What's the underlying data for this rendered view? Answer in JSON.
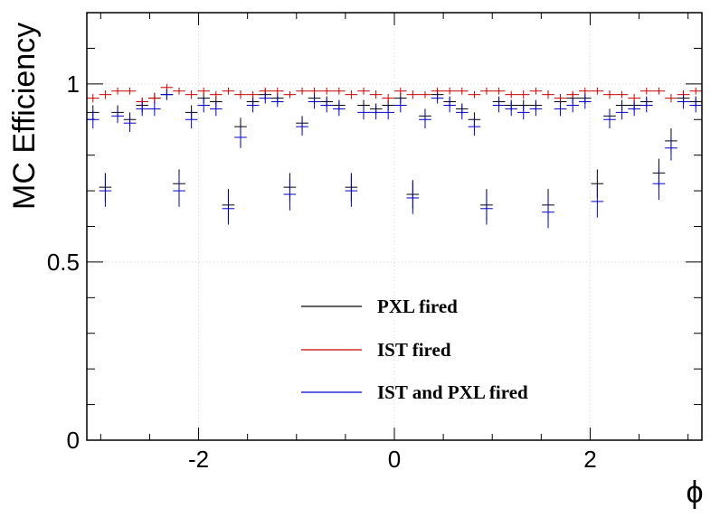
{
  "chart_data": {
    "type": "scatter",
    "style": "histogram error bars",
    "xlabel": "ϕ",
    "ylabel": "MC Efficiency",
    "xlim": [
      -3.1416,
      3.1416
    ],
    "ylim": [
      0,
      1.2
    ],
    "x_ticks": [
      -2,
      0,
      2
    ],
    "y_ticks": [
      0,
      0.5,
      1
    ],
    "grid": "dotted",
    "legend_placement": "bottom-center",
    "series": [
      {
        "name": "PXL fired",
        "color": "#000000",
        "x": [
          -3.079,
          -2.953,
          -2.827,
          -2.702,
          -2.576,
          -2.45,
          -2.325,
          -2.199,
          -2.073,
          -1.948,
          -1.822,
          -1.696,
          -1.571,
          -1.445,
          -1.319,
          -1.194,
          -1.068,
          -0.942,
          -0.817,
          -0.691,
          -0.565,
          -0.44,
          -0.314,
          -0.188,
          -0.063,
          0.063,
          0.188,
          0.314,
          0.44,
          0.565,
          0.691,
          0.817,
          0.942,
          1.068,
          1.194,
          1.319,
          1.445,
          1.571,
          1.696,
          1.822,
          1.948,
          2.073,
          2.199,
          2.325,
          2.45,
          2.576,
          2.702,
          2.827,
          2.953,
          3.079
        ],
        "y": [
          0.92,
          0.71,
          0.92,
          0.9,
          0.94,
          0.96,
          0.97,
          0.72,
          0.92,
          0.96,
          0.95,
          0.66,
          0.88,
          0.95,
          0.97,
          0.96,
          0.71,
          0.89,
          0.96,
          0.95,
          0.94,
          0.71,
          0.94,
          0.93,
          0.94,
          0.96,
          0.69,
          0.91,
          0.97,
          0.95,
          0.93,
          0.9,
          0.66,
          0.95,
          0.94,
          0.94,
          0.94,
          0.66,
          0.95,
          0.96,
          0.96,
          0.72,
          0.91,
          0.94,
          0.94,
          0.95,
          0.75,
          0.84,
          0.96,
          0.95
        ],
        "err": [
          0.02,
          0.04,
          0.02,
          0.02,
          0.02,
          0.015,
          0.015,
          0.04,
          0.02,
          0.015,
          0.015,
          0.045,
          0.025,
          0.015,
          0.015,
          0.015,
          0.04,
          0.02,
          0.015,
          0.015,
          0.015,
          0.04,
          0.015,
          0.015,
          0.015,
          0.015,
          0.04,
          0.02,
          0.015,
          0.015,
          0.015,
          0.02,
          0.045,
          0.015,
          0.015,
          0.015,
          0.015,
          0.045,
          0.015,
          0.015,
          0.015,
          0.04,
          0.02,
          0.015,
          0.015,
          0.015,
          0.04,
          0.035,
          0.015,
          0.015
        ]
      },
      {
        "name": "IST fired",
        "color": "#cc0000",
        "x": [
          -3.079,
          -2.953,
          -2.827,
          -2.702,
          -2.576,
          -2.45,
          -2.325,
          -2.199,
          -2.073,
          -1.948,
          -1.822,
          -1.696,
          -1.571,
          -1.445,
          -1.319,
          -1.194,
          -1.068,
          -0.942,
          -0.817,
          -0.691,
          -0.565,
          -0.44,
          -0.314,
          -0.188,
          -0.063,
          0.063,
          0.188,
          0.314,
          0.44,
          0.565,
          0.691,
          0.817,
          0.942,
          1.068,
          1.194,
          1.319,
          1.445,
          1.571,
          1.696,
          1.822,
          1.948,
          2.073,
          2.199,
          2.325,
          2.45,
          2.576,
          2.702,
          2.827,
          2.953,
          3.079
        ],
        "y": [
          0.96,
          0.97,
          0.98,
          0.98,
          0.95,
          0.96,
          0.99,
          0.98,
          0.97,
          0.98,
          0.97,
          0.98,
          0.97,
          0.97,
          0.98,
          0.98,
          0.97,
          0.98,
          0.98,
          0.98,
          0.98,
          0.97,
          0.98,
          0.97,
          0.96,
          0.98,
          0.97,
          0.97,
          0.98,
          0.98,
          0.98,
          0.97,
          0.98,
          0.98,
          0.97,
          0.97,
          0.98,
          0.97,
          0.96,
          0.97,
          0.98,
          0.98,
          0.97,
          0.97,
          0.96,
          0.98,
          0.98,
          0.96,
          0.97,
          0.98
        ],
        "err": [
          0.012,
          0.012,
          0.01,
          0.01,
          0.012,
          0.012,
          0.01,
          0.01,
          0.012,
          0.01,
          0.01,
          0.01,
          0.012,
          0.01,
          0.01,
          0.01,
          0.01,
          0.01,
          0.01,
          0.01,
          0.01,
          0.012,
          0.01,
          0.012,
          0.012,
          0.01,
          0.012,
          0.01,
          0.01,
          0.01,
          0.01,
          0.01,
          0.01,
          0.01,
          0.01,
          0.012,
          0.01,
          0.012,
          0.012,
          0.01,
          0.01,
          0.01,
          0.012,
          0.01,
          0.012,
          0.01,
          0.01,
          0.012,
          0.012,
          0.01
        ]
      },
      {
        "name": "IST and PXL fired",
        "color": "#0000cc",
        "x": [
          -3.079,
          -2.953,
          -2.827,
          -2.702,
          -2.576,
          -2.45,
          -2.325,
          -2.199,
          -2.073,
          -1.948,
          -1.822,
          -1.696,
          -1.571,
          -1.445,
          -1.319,
          -1.194,
          -1.068,
          -0.942,
          -0.817,
          -0.691,
          -0.565,
          -0.44,
          -0.314,
          -0.188,
          -0.063,
          0.063,
          0.188,
          0.314,
          0.44,
          0.565,
          0.691,
          0.817,
          0.942,
          1.068,
          1.194,
          1.319,
          1.445,
          1.571,
          1.696,
          1.822,
          1.948,
          2.073,
          2.199,
          2.325,
          2.45,
          2.576,
          2.702,
          2.827,
          2.953,
          3.079
        ],
        "y": [
          0.9,
          0.7,
          0.91,
          0.89,
          0.93,
          0.93,
          0.97,
          0.7,
          0.9,
          0.94,
          0.93,
          0.65,
          0.85,
          0.94,
          0.96,
          0.95,
          0.69,
          0.88,
          0.95,
          0.94,
          0.93,
          0.7,
          0.92,
          0.92,
          0.92,
          0.94,
          0.68,
          0.9,
          0.96,
          0.94,
          0.92,
          0.88,
          0.65,
          0.94,
          0.93,
          0.92,
          0.93,
          0.64,
          0.93,
          0.94,
          0.95,
          0.67,
          0.9,
          0.92,
          0.93,
          0.94,
          0.72,
          0.82,
          0.95,
          0.94
        ],
        "err": [
          0.025,
          0.045,
          0.02,
          0.025,
          0.02,
          0.02,
          0.015,
          0.045,
          0.025,
          0.02,
          0.02,
          0.045,
          0.03,
          0.02,
          0.015,
          0.015,
          0.045,
          0.025,
          0.02,
          0.02,
          0.02,
          0.045,
          0.02,
          0.02,
          0.02,
          0.02,
          0.045,
          0.025,
          0.015,
          0.02,
          0.02,
          0.025,
          0.045,
          0.02,
          0.02,
          0.02,
          0.02,
          0.045,
          0.02,
          0.02,
          0.02,
          0.045,
          0.025,
          0.02,
          0.02,
          0.02,
          0.045,
          0.035,
          0.02,
          0.02
        ]
      }
    ]
  }
}
